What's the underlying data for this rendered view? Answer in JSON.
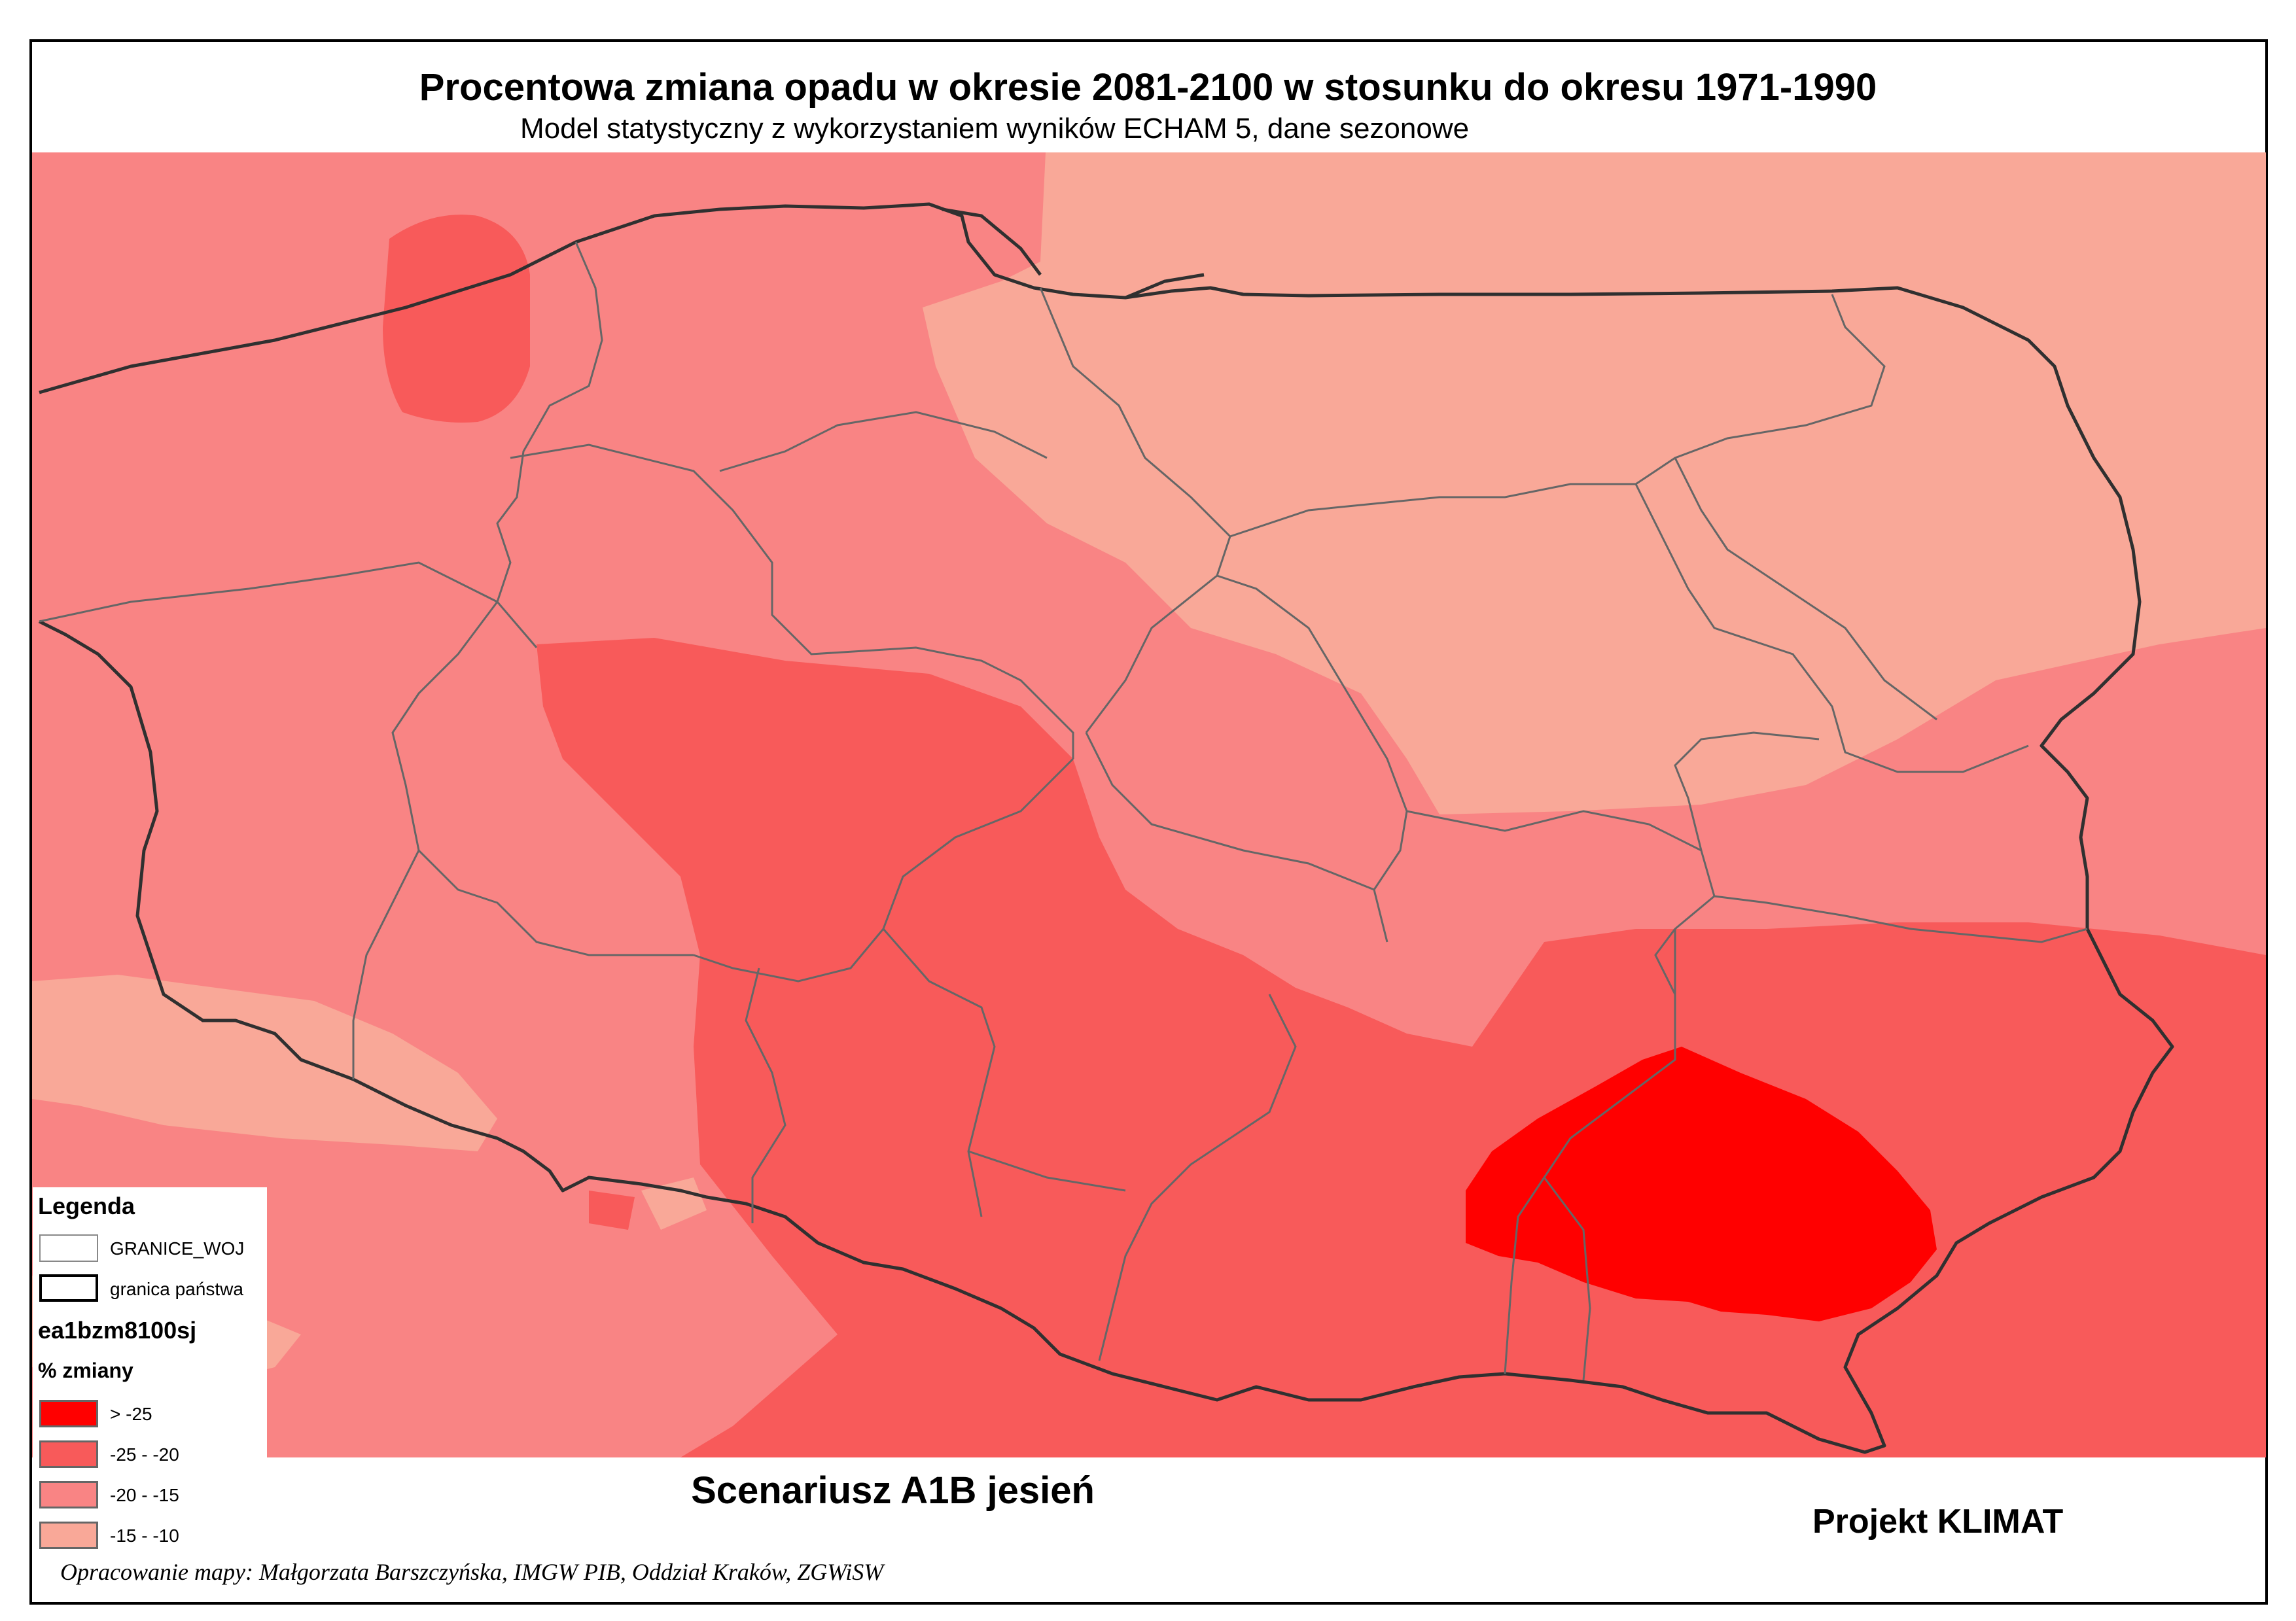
{
  "title": "Procentowa zmiana opadu w okresie 2081-2100 w stosunku do okresu 1971-1990",
  "subtitle": "Model statystyczny z wykorzystaniem wyników ECHAM 5, dane sezonowe",
  "scenario": "Scenariusz A1B jesień",
  "project": "Projekt KLIMAT",
  "credit": "Opracowanie mapy: Małgorzata Barszczyńska, IMGW PIB, Oddział Kraków, ZGWiSW",
  "legend": {
    "title": "Legenda",
    "layers": [
      {
        "label": "GRANICE_WOJ",
        "icon": "thin-outline-box"
      },
      {
        "label": "granica państwa",
        "icon": "thick-outline-box"
      }
    ],
    "raster_name": "ea1bzm8100sj",
    "field_name": "% zmiany",
    "classes": [
      {
        "label": "> -25",
        "color": "#ff0000"
      },
      {
        "label": "-25 - -20",
        "color": "#f85a5a"
      },
      {
        "label": "-20 - -15",
        "color": "#f98484"
      },
      {
        "label": "-15 - -10",
        "color": "#f9a898"
      }
    ]
  },
  "colors": {
    "class_gt_minus25": "#ff0000",
    "class_25_20": "#f85a5a",
    "class_20_15": "#f98484",
    "class_15_10": "#f9a898",
    "state_border": "#303030",
    "voivodeship_border": "#666666"
  }
}
